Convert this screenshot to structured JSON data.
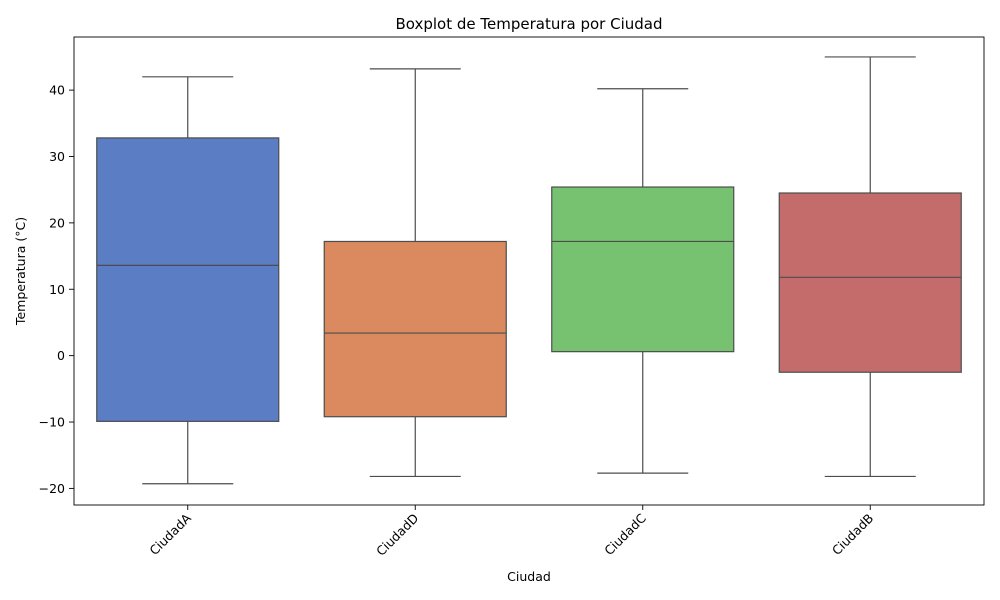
{
  "chart_data": {
    "type": "boxplot",
    "title": "Boxplot de Temperatura por Ciudad",
    "xlabel": "Ciudad",
    "ylabel": "Temperatura (°C)",
    "ylim": [
      -22.5,
      48
    ],
    "yticks": [
      -20,
      -10,
      0,
      10,
      20,
      30,
      40
    ],
    "ytick_labels": [
      "−20",
      "−10",
      "0",
      "10",
      "20",
      "30",
      "40"
    ],
    "grid": false,
    "legend": "none",
    "categories": [
      "CiudadA",
      "CiudadD",
      "CiudadC",
      "CiudadB"
    ],
    "boxes": [
      {
        "category": "CiudadA",
        "whisker_low": -19.3,
        "q1": -9.9,
        "median": 13.6,
        "q3": 32.8,
        "whisker_high": 42.0,
        "color": "#5a7dc4"
      },
      {
        "category": "CiudadD",
        "whisker_low": -18.2,
        "q1": -9.2,
        "median": 3.4,
        "q3": 17.2,
        "whisker_high": 43.2,
        "color": "#da8a5e"
      },
      {
        "category": "CiudadC",
        "whisker_low": -17.7,
        "q1": 0.6,
        "median": 17.2,
        "q3": 25.4,
        "whisker_high": 40.2,
        "color": "#77c270"
      },
      {
        "category": "CiudadB",
        "whisker_low": -18.2,
        "q1": -2.5,
        "median": 11.8,
        "q3": 24.5,
        "whisker_high": 45.0,
        "color": "#c46c6b"
      }
    ]
  }
}
